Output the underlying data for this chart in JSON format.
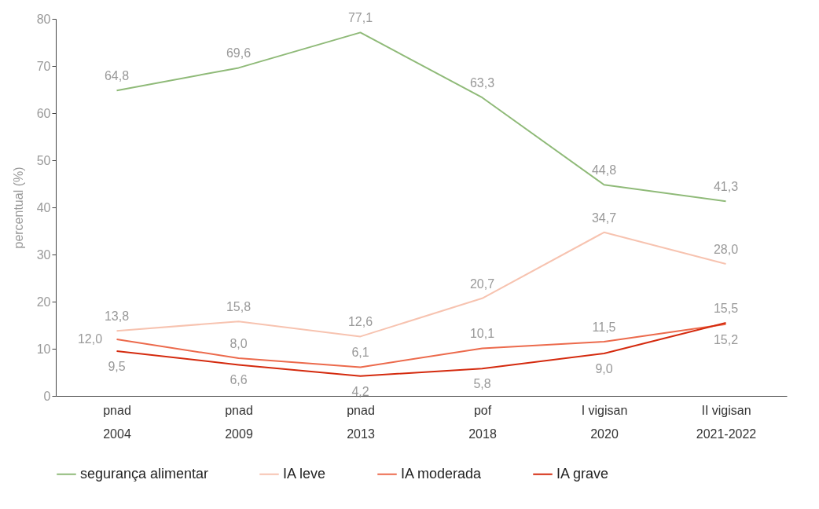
{
  "chart_data": {
    "type": "line",
    "ylabel": "percentual (%)",
    "categories": [
      "pnad\n2004",
      "pnad\n2009",
      "pnad\n2013",
      "pof\n2018",
      "I vigisan\n2020",
      "II vigisan\n2021-2022"
    ],
    "series": [
      {
        "name": "segurança alimentar",
        "color": "#8fba78",
        "values": [
          64.8,
          69.6,
          77.1,
          63.3,
          44.8,
          41.3
        ],
        "value_labels": [
          "64,8",
          "69,6",
          "77,1",
          "63,3",
          "44,8",
          "41,3"
        ]
      },
      {
        "name": "IA leve",
        "color": "#f7c3b0",
        "values": [
          13.8,
          15.8,
          12.6,
          20.7,
          34.7,
          28.0
        ],
        "value_labels": [
          "13,8",
          "15,8",
          "12,6",
          "20,7",
          "34,7",
          "28,0"
        ]
      },
      {
        "name": "IA moderada",
        "color": "#ec6a4c",
        "values": [
          12.0,
          8.0,
          6.1,
          10.1,
          11.5,
          15.2
        ],
        "value_labels": [
          "12,0",
          "8,0",
          "6,1",
          "10,1",
          "11,5",
          "15,2"
        ]
      },
      {
        "name": "IA grave",
        "color": "#d42a0e",
        "values": [
          9.5,
          6.6,
          4.2,
          5.8,
          9.0,
          15.5
        ],
        "value_labels": [
          "9,5",
          "6,6",
          "4,2",
          "5,8",
          "9,0",
          "15,5"
        ]
      }
    ],
    "ylim": [
      0,
      80
    ],
    "yticks": [
      0,
      10,
      20,
      30,
      40,
      50,
      60,
      70,
      80
    ],
    "grid": false,
    "legend": "bottom",
    "marker": "none",
    "line_style": "solid"
  }
}
